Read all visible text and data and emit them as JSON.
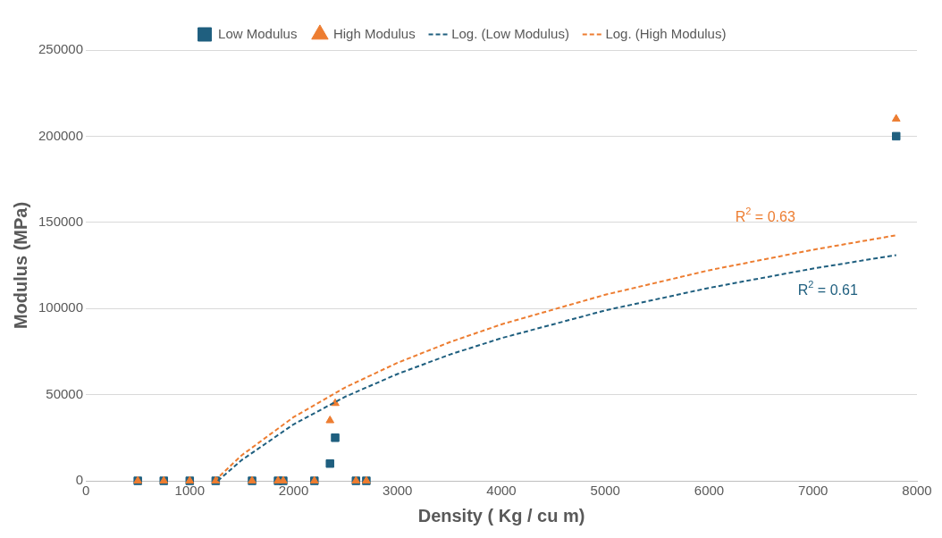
{
  "chart_data": {
    "type": "scatter",
    "xlabel": "Density ( Kg / cu m)",
    "ylabel": "Modulus (MPa)",
    "xlim": [
      0,
      8000
    ],
    "xticks": [
      0,
      1000,
      2000,
      3000,
      4000,
      5000,
      6000,
      7000,
      8000
    ],
    "ylim": [
      0,
      250000
    ],
    "yticks": [
      0,
      50000,
      100000,
      150000,
      200000,
      250000
    ],
    "grid": "y",
    "legend": "top",
    "series": [
      {
        "name": "Low Modulus",
        "color": "#1f5f7f",
        "marker": "square",
        "x": [
          500,
          750,
          1000,
          1250,
          1600,
          1850,
          1900,
          2200,
          2350,
          2400,
          2600,
          2700,
          7800
        ],
        "values": [
          0,
          0,
          0,
          0,
          0,
          0,
          0,
          0,
          10000,
          25000,
          0,
          0,
          200000
        ]
      },
      {
        "name": "High Modulus",
        "color": "#ed7d31",
        "marker": "triangle",
        "x": [
          500,
          750,
          1000,
          1250,
          1600,
          1850,
          1900,
          2200,
          2350,
          2400,
          2600,
          2700,
          7800
        ],
        "values": [
          0,
          0,
          0,
          0,
          0,
          0,
          0,
          0,
          35000,
          45000,
          0,
          0,
          210000
        ]
      },
      {
        "name": "Log. (Low Modulus)",
        "type": "line",
        "color": "#1f5f7f",
        "line_style": "dashed",
        "marker": "none",
        "x": [
          1270,
          1500,
          2000,
          2500,
          3000,
          3500,
          4000,
          5000,
          6000,
          7000,
          7800
        ],
        "values": [
          0,
          12000,
          32800,
          48900,
          62000,
          73200,
          82800,
          98900,
          112000,
          123200,
          131000
        ]
      },
      {
        "name": "Log. (High Modulus)",
        "type": "line",
        "color": "#ed7d31",
        "line_style": "dashed",
        "marker": "none",
        "x": [
          1240,
          1500,
          2000,
          2500,
          3000,
          3500,
          4000,
          5000,
          6000,
          7000,
          7800
        ],
        "values": [
          0,
          14800,
          37000,
          54300,
          68500,
          80400,
          90800,
          108000,
          122200,
          134100,
          142500
        ]
      }
    ],
    "annotations": [
      "R$^{2}$ = 0.63",
      "R$^{2}$ = 0.61"
    ]
  }
}
